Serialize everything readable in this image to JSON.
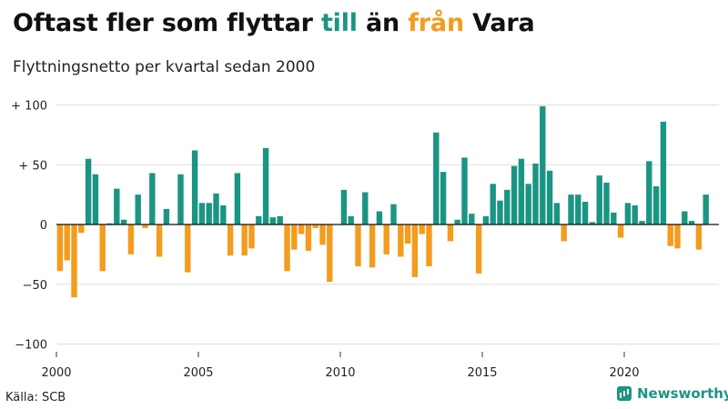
{
  "header": {
    "title_part1": "Oftast fler som flyttar ",
    "title_till": "till",
    "title_part2": " än ",
    "title_fran": "från",
    "title_part3": " Vara",
    "subtitle": "Flyttningsnetto per kvartal sedan 2000"
  },
  "footer": {
    "source": "Källa: SCB",
    "brand": "Newsworthy"
  },
  "colors": {
    "positive": "#1b9583",
    "negative": "#f39c1d",
    "grid": "#dddddd",
    "brand": "#1b9583"
  },
  "chart_data": {
    "type": "bar",
    "title": "Oftast fler som flyttar till än från Vara",
    "subtitle": "Flyttningsnetto per kvartal sedan 2000",
    "ylim": [
      -100,
      100
    ],
    "y_ticks": [
      {
        "value": 100,
        "label": "+ 100"
      },
      {
        "value": 50,
        "label": "+  50"
      },
      {
        "value": 0,
        "label": "0"
      },
      {
        "value": -50,
        "label": "−50"
      },
      {
        "value": -100,
        "label": "−100"
      }
    ],
    "x_ticks": [
      {
        "value": 2000,
        "label": "2000"
      },
      {
        "value": 2005,
        "label": "2005"
      },
      {
        "value": 2010,
        "label": "2010"
      },
      {
        "value": 2015,
        "label": "2015"
      },
      {
        "value": 2020,
        "label": "2020"
      }
    ],
    "start_year": 2000,
    "grid": true,
    "values": [
      -39,
      -30,
      -61,
      -7,
      55,
      42,
      -39,
      1,
      30,
      4,
      -25,
      25,
      -3,
      43,
      -27,
      13,
      0,
      42,
      -40,
      62,
      18,
      18,
      26,
      16,
      -26,
      43,
      -26,
      -20,
      7,
      64,
      6,
      7,
      -39,
      -21,
      -8,
      -22,
      -3,
      -17,
      -48,
      0,
      29,
      7,
      -35,
      27,
      -36,
      11,
      -25,
      17,
      -27,
      -16,
      -44,
      -8,
      -35,
      77,
      44,
      -14,
      4,
      56,
      9,
      -41,
      7,
      34,
      20,
      29,
      49,
      55,
      34,
      51,
      99,
      45,
      18,
      -14,
      25,
      25,
      19,
      2,
      41,
      35,
      10,
      -11,
      18,
      16,
      3,
      53,
      32,
      86,
      -18,
      -20,
      11,
      3,
      -21,
      25
    ]
  }
}
